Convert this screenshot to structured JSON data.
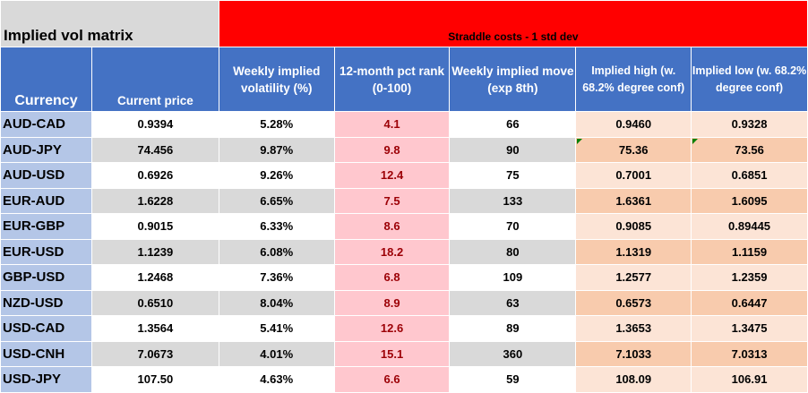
{
  "title": "Implied vol matrix",
  "straddle_banner": "Straddle costs - 1 std dev",
  "headers": {
    "currency": "Currency",
    "price": "Current price",
    "vol": "Weekly implied volatility (%)",
    "rank": "12-month pct rank (0-100)",
    "move": "Weekly implied move (exp 8th)",
    "high": "Implied high (w. 68.2% degree conf)",
    "low": "Implied low (w. 68.2% degree conf)"
  },
  "rows": [
    {
      "currency": "AUD-CAD",
      "price": "0.9394",
      "vol": "5.28%",
      "rank": "4.1",
      "move": "66",
      "high": "0.9460",
      "low": "0.9328"
    },
    {
      "currency": "AUD-JPY",
      "price": "74.456",
      "vol": "9.87%",
      "rank": "9.8",
      "move": "90",
      "high": "75.36",
      "low": "73.56"
    },
    {
      "currency": "AUD-USD",
      "price": "0.6926",
      "vol": "9.26%",
      "rank": "12.4",
      "move": "75",
      "high": "0.7001",
      "low": "0.6851"
    },
    {
      "currency": "EUR-AUD",
      "price": "1.6228",
      "vol": "6.65%",
      "rank": "7.5",
      "move": "133",
      "high": "1.6361",
      "low": "1.6095"
    },
    {
      "currency": "EUR-GBP",
      "price": "0.9015",
      "vol": "6.33%",
      "rank": "8.6",
      "move": "70",
      "high": "0.9085",
      "low": "0.89445"
    },
    {
      "currency": "EUR-USD",
      "price": "1.1239",
      "vol": "6.08%",
      "rank": "18.2",
      "move": "80",
      "high": "1.1319",
      "low": "1.1159"
    },
    {
      "currency": "GBP-USD",
      "price": "1.2468",
      "vol": "7.36%",
      "rank": "6.8",
      "move": "109",
      "high": "1.2577",
      "low": "1.2359"
    },
    {
      "currency": "NZD-USD",
      "price": "0.6510",
      "vol": "8.04%",
      "rank": "8.9",
      "move": "63",
      "high": "0.6573",
      "low": "0.6447"
    },
    {
      "currency": "USD-CAD",
      "price": "1.3564",
      "vol": "5.41%",
      "rank": "12.6",
      "move": "89",
      "high": "1.3653",
      "low": "1.3475"
    },
    {
      "currency": "USD-CNH",
      "price": "7.0673",
      "vol": "4.01%",
      "rank": "15.1",
      "move": "360",
      "high": "7.1033",
      "low": "7.0313"
    },
    {
      "currency": "USD-JPY",
      "price": "107.50",
      "vol": "4.63%",
      "rank": "6.6",
      "move": "59",
      "high": "108.09",
      "low": "106.91"
    }
  ],
  "colors": {
    "header_blue": "#4472c4",
    "currency_blue": "#b4c6e7",
    "banner_red": "#ff0000",
    "rank_pink": "#ffc7ce",
    "rank_text": "#9c0006",
    "implied_peach": "#f8cbad",
    "implied_light": "#fce4d6",
    "stripe_grey": "#d9d9d9"
  }
}
